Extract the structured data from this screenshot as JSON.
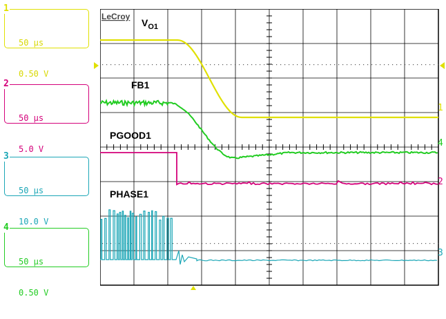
{
  "brand": "LeCroy",
  "channels": [
    {
      "num": "1",
      "time_div": "50 µs",
      "volt_div": "0.50 V",
      "color": "#e0e000"
    },
    {
      "num": "2",
      "time_div": "50 µs",
      "volt_div": "5.0 V",
      "color": "#d4007a"
    },
    {
      "num": "3",
      "time_div": "50 µs",
      "volt_div": "10.0 V",
      "color": "#1aa6b6"
    },
    {
      "num": "4",
      "time_div": "50 µs",
      "volt_div": "0.50 V",
      "color": "#22cc22"
    }
  ],
  "traces": {
    "vo1": {
      "label": "V",
      "sub": "O1",
      "marker": "1"
    },
    "fb1": {
      "label": "FB1",
      "marker": "4"
    },
    "pgood1": {
      "label": "PGOOD1",
      "marker": "2"
    },
    "phase1": {
      "label": "PHASE1",
      "marker": "3"
    }
  }
}
